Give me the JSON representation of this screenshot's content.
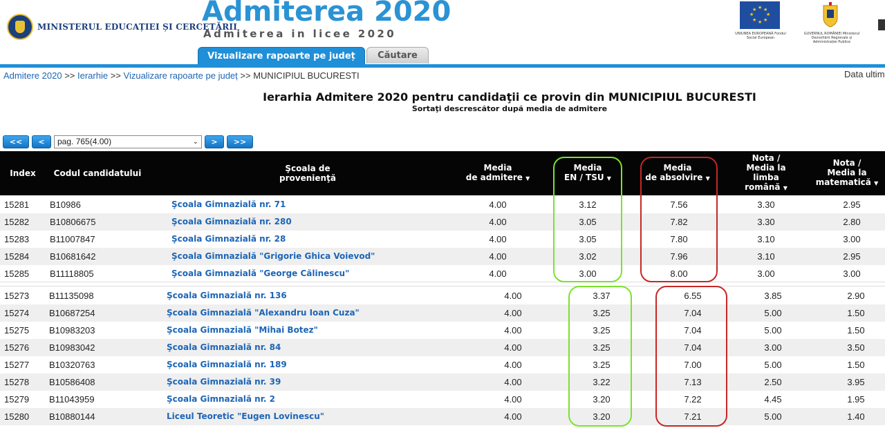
{
  "header": {
    "ministry_name": "MINISTERUL EDUCAȚIEI ȘI CERCETĂRII",
    "title": "Admiterea 2020",
    "subtitle": "Admiterea in licee 2020",
    "eu_caption": "UNIUNEA EUROPEANĂ Fondul Social European",
    "gov_caption": "GUVERNUL ROMÂNIEI Ministerul Dezvoltării Regionale și Administrației Publice"
  },
  "tabs": [
    {
      "label": "Vizualizare rapoarte pe județ",
      "active": true
    },
    {
      "label": "Căutare",
      "active": false
    }
  ],
  "breadcrumb": {
    "items": [
      "Admitere 2020",
      "Ierarhie",
      "Vizualizare rapoarte pe județ"
    ],
    "separator": ">>",
    "current": "MUNICIPIUL BUCURESTI"
  },
  "data_ultim": "Data ultim",
  "heading": {
    "title": "Ierarhia Admitere 2020 pentru candidaţii ce provin din MUNICIPIUL BUCURESTI",
    "subtitle": "Sortaţi descrescător după media de admitere"
  },
  "pager": {
    "first": "<<",
    "prev": "<",
    "selected": "pag. 765(4.00)",
    "next": ">",
    "last": ">>"
  },
  "columns": {
    "index": "Index",
    "code": "Codul candidatului",
    "school_1": "Şcoala de",
    "school_2": "provenienţă",
    "adm_1": "Media",
    "adm_2": "de admitere",
    "en_1": "Media",
    "en_2": "EN / TSU",
    "abs_1": "Media",
    "abs_2": "de absolvire",
    "ro_1": "Nota /",
    "ro_2": "Media la",
    "ro_3": "limba",
    "ro_4": "română",
    "mat_1": "Nota /",
    "mat_2": "Media la",
    "mat_3": "matematică",
    "sort_arrow": "▼"
  },
  "rows_top": [
    {
      "index": "15281",
      "code": "B10986",
      "school": "Şcoala Gimnazială nr. 71",
      "adm": "4.00",
      "en": "3.12",
      "abs": "7.56",
      "ro": "3.30",
      "mat": "2.95"
    },
    {
      "index": "15282",
      "code": "B10806675",
      "school": "Şcoala Gimnazială nr. 280",
      "adm": "4.00",
      "en": "3.05",
      "abs": "7.82",
      "ro": "3.30",
      "mat": "2.80"
    },
    {
      "index": "15283",
      "code": "B11007847",
      "school": "Şcoala Gimnazială nr. 28",
      "adm": "4.00",
      "en": "3.05",
      "abs": "7.80",
      "ro": "3.10",
      "mat": "3.00"
    },
    {
      "index": "15284",
      "code": "B10681642",
      "school": "Şcoala Gimnazială \"Grigorie Ghica Voievod\"",
      "adm": "4.00",
      "en": "3.02",
      "abs": "7.96",
      "ro": "3.10",
      "mat": "2.95"
    },
    {
      "index": "15285",
      "code": "B11118805",
      "school": "Şcoala Gimnazială \"George Călinescu\"",
      "adm": "4.00",
      "en": "3.00",
      "abs": "8.00",
      "ro": "3.00",
      "mat": "3.00"
    }
  ],
  "rows_bottom": [
    {
      "index": "15273",
      "code": "B11135098",
      "school": "Şcoala Gimnazială nr. 136",
      "adm": "4.00",
      "en": "3.37",
      "abs": "6.55",
      "ro": "3.85",
      "mat": "2.90"
    },
    {
      "index": "15274",
      "code": "B10687254",
      "school": "Şcoala Gimnazială \"Alexandru Ioan Cuza\"",
      "adm": "4.00",
      "en": "3.25",
      "abs": "7.04",
      "ro": "5.00",
      "mat": "1.50"
    },
    {
      "index": "15275",
      "code": "B10983203",
      "school": "Şcoala Gimnazială \"Mihai Botez\"",
      "adm": "4.00",
      "en": "3.25",
      "abs": "7.04",
      "ro": "5.00",
      "mat": "1.50"
    },
    {
      "index": "15276",
      "code": "B10983042",
      "school": "Şcoala Gimnazială nr. 84",
      "adm": "4.00",
      "en": "3.25",
      "abs": "7.04",
      "ro": "3.00",
      "mat": "3.50"
    },
    {
      "index": "15277",
      "code": "B10320763",
      "school": "Şcoala Gimnazială nr. 189",
      "adm": "4.00",
      "en": "3.25",
      "abs": "7.00",
      "ro": "5.00",
      "mat": "1.50"
    },
    {
      "index": "15278",
      "code": "B10586408",
      "school": "Şcoala Gimnazială nr. 39",
      "adm": "4.00",
      "en": "3.22",
      "abs": "7.13",
      "ro": "2.50",
      "mat": "3.95"
    },
    {
      "index": "15279",
      "code": "B11043959",
      "school": "Şcoala Gimnazială nr. 2",
      "adm": "4.00",
      "en": "3.20",
      "abs": "7.22",
      "ro": "4.45",
      "mat": "1.95"
    },
    {
      "index": "15280",
      "code": "B10880144",
      "school": "Liceul Teoretic \"Eugen Lovinescu\"",
      "adm": "4.00",
      "en": "3.20",
      "abs": "7.21",
      "ro": "5.00",
      "mat": "1.40"
    }
  ],
  "colors": {
    "accent": "#1f8fd8",
    "link": "#1d65b6",
    "highlight_green": "#7be22c",
    "highlight_red": "#c62626"
  }
}
